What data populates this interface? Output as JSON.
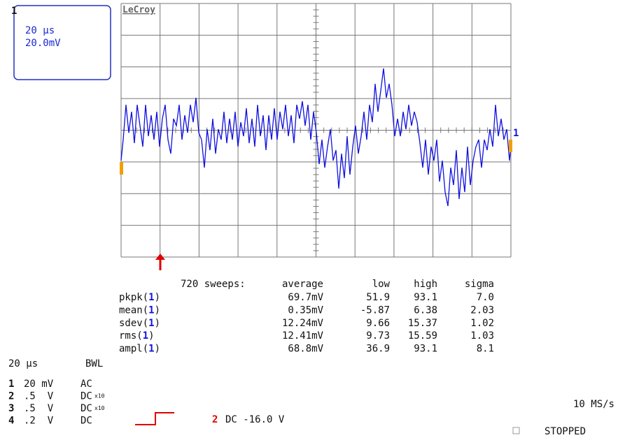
{
  "channel_box": {
    "channel": "1",
    "timebase": "20 μs",
    "volts": "20.0mV"
  },
  "brand": "LeCroy",
  "stats": {
    "header": [
      "720 sweeps:",
      "average",
      "low",
      "high",
      "sigma"
    ],
    "rows": [
      {
        "label": [
          "pkpk(",
          "1",
          ")"
        ],
        "cells": [
          "69.7mV",
          "51.9",
          "93.1",
          "7.0"
        ]
      },
      {
        "label": [
          "mean(",
          "1",
          ")"
        ],
        "cells": [
          "0.35mV",
          "-5.87",
          "6.38",
          "2.03"
        ]
      },
      {
        "label": [
          "sdev(",
          "1",
          ")"
        ],
        "cells": [
          "12.24mV",
          "9.66",
          "15.37",
          "1.02"
        ]
      },
      {
        "label": [
          "rms(",
          "1",
          ")"
        ],
        "cells": [
          "12.41mV",
          "9.73",
          "15.59",
          "1.03"
        ]
      },
      {
        "label": [
          "ampl(",
          "1",
          ")"
        ],
        "cells": [
          "68.8mV",
          "36.9",
          "93.1",
          "8.1"
        ]
      }
    ]
  },
  "timebase": "20 μs",
  "bwl": "BWL",
  "channels": [
    {
      "id": "1",
      "scale": "20 mV",
      "coupling": "AC",
      "probe": ""
    },
    {
      "id": "2",
      "scale": ".5  V",
      "coupling": "DC",
      "probe": "x10"
    },
    {
      "id": "3",
      "scale": ".5  V",
      "coupling": "DC",
      "probe": "x10"
    },
    {
      "id": "4",
      "scale": ".2  V",
      "coupling": "DC",
      "probe": ""
    }
  ],
  "trigger": {
    "channel": "2",
    "setting": "DC -16.0 V"
  },
  "sample_rate": "10 MS/s",
  "status": "STOPPED"
}
